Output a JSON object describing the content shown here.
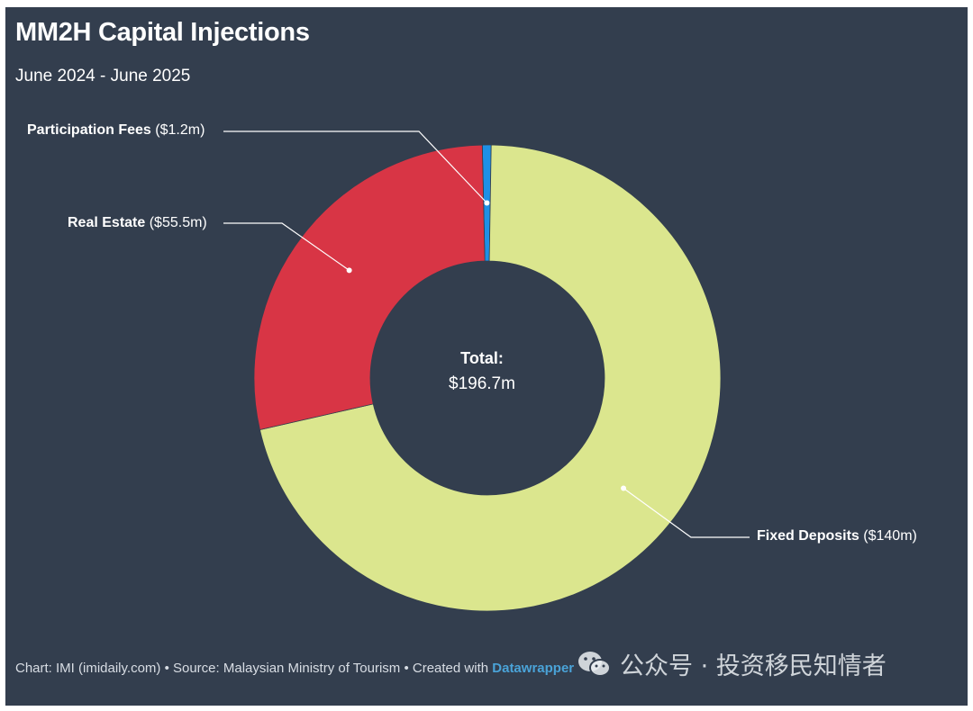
{
  "header": {
    "title": "MM2H Capital Injections",
    "subtitle": "June 2024 - June 2025"
  },
  "chart_data": {
    "type": "pie",
    "variant": "donut",
    "title": "MM2H Capital Injections",
    "subtitle": "June 2024 - June 2025",
    "unit": "$m",
    "slices": [
      {
        "name": "Participation Fees",
        "value": 1.2,
        "value_label": "($1.2m)",
        "color": "#1e90e6"
      },
      {
        "name": "Fixed Deposits",
        "value": 140,
        "value_label": "($140m)",
        "color": "#dbe68e"
      },
      {
        "name": "Real Estate",
        "value": 55.5,
        "value_label": "($55.5m)",
        "color": "#d83545"
      }
    ],
    "center": {
      "title": "Total:",
      "value": "$196.7m"
    },
    "background": "#333e4e"
  },
  "footer": {
    "credit_prefix": "Chart: IMI (imidaily.com) • Source: Malaysian Ministry of Tourism • Created with ",
    "credit_link": "Datawrapper"
  },
  "watermark": {
    "text": "公众号 · 投资移民知情者",
    "icon": "wechat-icon"
  }
}
